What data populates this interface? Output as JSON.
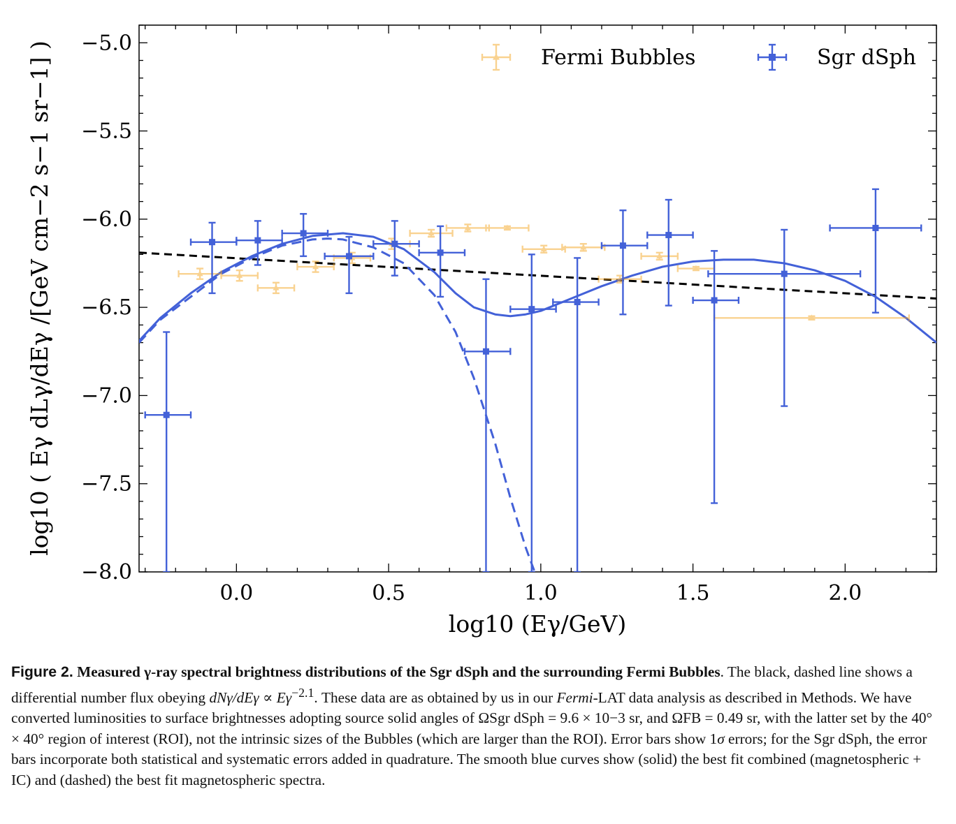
{
  "chart_data": {
    "type": "scatter",
    "xlabel": "log10 (Eγ/GeV)",
    "ylabel": "log10 ( Eγ dLγ/dEγ /[GeV cm−2 s−1 sr−1] )",
    "xlim": [
      -0.32,
      2.3
    ],
    "ylim": [
      -8.0,
      -4.9
    ],
    "x_ticks": [
      0.0,
      0.5,
      1.0,
      1.5,
      2.0
    ],
    "x_tick_labels": [
      "0.0",
      "0.5",
      "1.0",
      "1.5",
      "2.0"
    ],
    "y_ticks": [
      -5.0,
      -5.5,
      -6.0,
      -6.5,
      -7.0,
      -7.5,
      -8.0
    ],
    "y_tick_labels": [
      "−5.0",
      "−5.5",
      "−6.0",
      "−6.5",
      "−7.0",
      "−7.5",
      "−8.0"
    ],
    "legend_position": "top",
    "series": [
      {
        "name": "Fermi Bubbles",
        "color": "#f5a623",
        "marker": "triangle",
        "points": [
          {
            "x": -0.12,
            "y": -6.31,
            "xerr": [
              0.07,
              0.07
            ],
            "yerr": [
              0.03,
              0.03
            ]
          },
          {
            "x": 0.01,
            "y": -6.32,
            "xerr": [
              0.06,
              0.06
            ],
            "yerr": [
              0.03,
              0.03
            ]
          },
          {
            "x": 0.13,
            "y": -6.39,
            "xerr": [
              0.06,
              0.06
            ],
            "yerr": [
              0.03,
              0.03
            ]
          },
          {
            "x": 0.26,
            "y": -6.27,
            "xerr": [
              0.06,
              0.06
            ],
            "yerr": [
              0.03,
              0.03
            ]
          },
          {
            "x": 0.38,
            "y": -6.22,
            "xerr": [
              0.06,
              0.06
            ],
            "yerr": [
              0.03,
              0.03
            ]
          },
          {
            "x": 0.51,
            "y": -6.14,
            "xerr": [
              0.06,
              0.06
            ],
            "yerr": [
              0.03,
              0.03
            ]
          },
          {
            "x": 0.64,
            "y": -6.08,
            "xerr": [
              0.07,
              0.07
            ],
            "yerr": [
              0.02,
              0.02
            ]
          },
          {
            "x": 0.76,
            "y": -6.05,
            "xerr": [
              0.07,
              0.07
            ],
            "yerr": [
              0.02,
              0.02
            ]
          },
          {
            "x": 0.89,
            "y": -6.05,
            "xerr": [
              0.07,
              0.07
            ],
            "yerr": [
              0.01,
              0.01
            ]
          },
          {
            "x": 1.01,
            "y": -6.17,
            "xerr": [
              0.07,
              0.07
            ],
            "yerr": [
              0.02,
              0.02
            ]
          },
          {
            "x": 1.14,
            "y": -6.16,
            "xerr": [
              0.07,
              0.07
            ],
            "yerr": [
              0.02,
              0.02
            ]
          },
          {
            "x": 1.26,
            "y": -6.34,
            "xerr": [
              0.07,
              0.07
            ],
            "yerr": [
              0.02,
              0.02
            ]
          },
          {
            "x": 1.39,
            "y": -6.21,
            "xerr": [
              0.06,
              0.06
            ],
            "yerr": [
              0.02,
              0.02
            ]
          },
          {
            "x": 1.51,
            "y": -6.28,
            "xerr": [
              0.06,
              0.06
            ],
            "yerr": [
              0.01,
              0.01
            ]
          },
          {
            "x": 1.89,
            "y": -6.56,
            "xerr": [
              0.32,
              0.32
            ],
            "yerr": [
              0.01,
              0.01
            ]
          }
        ]
      },
      {
        "name": "Sgr dSph",
        "color": "#4361d8",
        "marker": "square",
        "points": [
          {
            "x": -0.23,
            "y": -7.11,
            "xerr": [
              0.07,
              0.08
            ],
            "yerr": [
              0.89,
              0.47
            ]
          },
          {
            "x": -0.08,
            "y": -6.13,
            "xerr": [
              0.07,
              0.08
            ],
            "yerr": [
              0.29,
              0.11
            ]
          },
          {
            "x": 0.07,
            "y": -6.12,
            "xerr": [
              0.07,
              0.08
            ],
            "yerr": [
              0.14,
              0.11
            ]
          },
          {
            "x": 0.22,
            "y": -6.08,
            "xerr": [
              0.07,
              0.08
            ],
            "yerr": [
              0.13,
              0.11
            ]
          },
          {
            "x": 0.37,
            "y": -6.21,
            "xerr": [
              0.08,
              0.08
            ],
            "yerr": [
              0.21,
              0.11
            ]
          },
          {
            "x": 0.52,
            "y": -6.14,
            "xerr": [
              0.07,
              0.08
            ],
            "yerr": [
              0.18,
              0.13
            ]
          },
          {
            "x": 0.67,
            "y": -6.19,
            "xerr": [
              0.07,
              0.08
            ],
            "yerr": [
              0.25,
              0.15
            ]
          },
          {
            "x": 0.82,
            "y": -6.75,
            "xerr": [
              0.07,
              0.08
            ],
            "yerr": [
              1.25,
              0.41
            ]
          },
          {
            "x": 0.97,
            "y": -6.51,
            "xerr": [
              0.07,
              0.08
            ],
            "yerr": [
              1.49,
              0.31
            ]
          },
          {
            "x": 1.12,
            "y": -6.47,
            "xerr": [
              0.08,
              0.07
            ],
            "yerr": [
              1.53,
              0.25
            ]
          },
          {
            "x": 1.27,
            "y": -6.15,
            "xerr": [
              0.07,
              0.08
            ],
            "yerr": [
              0.39,
              0.2
            ]
          },
          {
            "x": 1.42,
            "y": -6.09,
            "xerr": [
              0.07,
              0.08
            ],
            "yerr": [
              0.4,
              0.2
            ]
          },
          {
            "x": 1.57,
            "y": -6.46,
            "xerr": [
              0.07,
              0.08
            ],
            "yerr": [
              1.15,
              0.28
            ]
          },
          {
            "x": 1.8,
            "y": -6.31,
            "xerr": [
              0.25,
              0.25
            ],
            "yerr": [
              0.75,
              0.25
            ]
          },
          {
            "x": 2.1,
            "y": -6.05,
            "xerr": [
              0.15,
              0.15
            ],
            "yerr": [
              0.48,
              0.22
            ]
          }
        ]
      }
    ],
    "lines": [
      {
        "id": "power-law",
        "style": "dashed",
        "color": "#000000",
        "points": [
          [
            -0.32,
            -6.19
          ],
          [
            2.3,
            -6.45
          ]
        ]
      },
      {
        "id": "combined-fit",
        "style": "solid",
        "color": "#4361d8",
        "points": [
          [
            -0.32,
            -6.69
          ],
          [
            -0.25,
            -6.56
          ],
          [
            -0.15,
            -6.42
          ],
          [
            -0.05,
            -6.3
          ],
          [
            0.05,
            -6.21
          ],
          [
            0.15,
            -6.14
          ],
          [
            0.25,
            -6.095
          ],
          [
            0.35,
            -6.08
          ],
          [
            0.45,
            -6.1
          ],
          [
            0.55,
            -6.17
          ],
          [
            0.65,
            -6.3
          ],
          [
            0.72,
            -6.42
          ],
          [
            0.78,
            -6.5
          ],
          [
            0.85,
            -6.54
          ],
          [
            0.9,
            -6.55
          ],
          [
            0.95,
            -6.54
          ],
          [
            1.0,
            -6.52
          ],
          [
            1.1,
            -6.45
          ],
          [
            1.2,
            -6.38
          ],
          [
            1.3,
            -6.32
          ],
          [
            1.4,
            -6.27
          ],
          [
            1.5,
            -6.24
          ],
          [
            1.6,
            -6.23
          ],
          [
            1.7,
            -6.23
          ],
          [
            1.8,
            -6.25
          ],
          [
            1.9,
            -6.29
          ],
          [
            2.0,
            -6.35
          ],
          [
            2.1,
            -6.44
          ],
          [
            2.2,
            -6.56
          ],
          [
            2.3,
            -6.7
          ]
        ]
      },
      {
        "id": "magnetospheric-fit",
        "style": "dashed",
        "color": "#4361d8",
        "points": [
          [
            -0.32,
            -6.7
          ],
          [
            -0.25,
            -6.57
          ],
          [
            -0.15,
            -6.44
          ],
          [
            -0.05,
            -6.31
          ],
          [
            0.05,
            -6.22
          ],
          [
            0.15,
            -6.15
          ],
          [
            0.25,
            -6.115
          ],
          [
            0.3,
            -6.11
          ],
          [
            0.35,
            -6.115
          ],
          [
            0.45,
            -6.16
          ],
          [
            0.55,
            -6.25
          ],
          [
            0.65,
            -6.43
          ],
          [
            0.72,
            -6.64
          ],
          [
            0.78,
            -6.9
          ],
          [
            0.85,
            -7.27
          ],
          [
            0.9,
            -7.58
          ],
          [
            0.95,
            -7.86
          ],
          [
            0.98,
            -8.0
          ]
        ]
      }
    ]
  },
  "caption": {
    "figure_number": "Figure 2.",
    "title": "Measured γ-ray spectral brightness distributions of the Sgr dSph and the surrounding Fermi Bubbles",
    "part1": ". The black, dashed line shows a differential number flux obeying ",
    "formula1": "dNγ/dEγ ∝ Eγ",
    "formula1_exp": "−2.1",
    "part2": ". These data are as obtained by us in our ",
    "fermi": "Fermi",
    "part3": "-LAT data analysis as described in Methods. We have converted luminosities to surface brightnesses adopting source solid angles of ",
    "omega_sgr": "ΩSgr dSph = 9.6 × 10−3 sr",
    "part4": ", and ",
    "omega_fb": "ΩFB = 0.49 sr",
    "part5": ", with the latter set by the 40° × 40° region of interest (ROI), not the intrinsic sizes of the Bubbles (which are larger than the ROI). Error bars show 1",
    "sigma": "σ",
    "part6": " errors; for the Sgr dSph, the error bars incorporate both statistical and systematic errors added in quadrature. The smooth blue curves show (solid) the best fit combined (magnetospheric + IC) and (dashed) the best fit magnetospheric spectra."
  }
}
